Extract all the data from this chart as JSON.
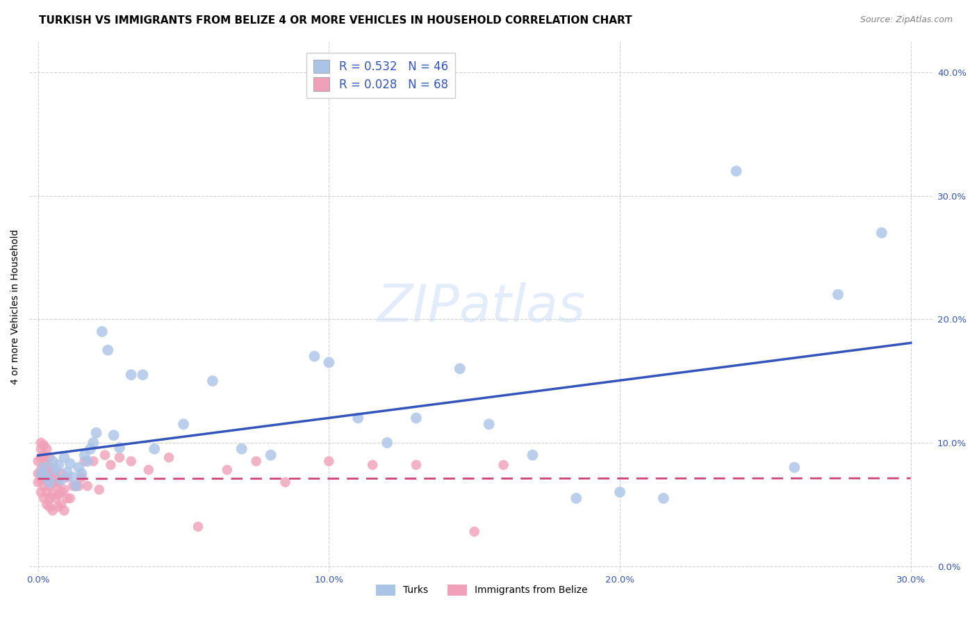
{
  "title": "TURKISH VS IMMIGRANTS FROM BELIZE 4 OR MORE VEHICLES IN HOUSEHOLD CORRELATION CHART",
  "source": "Source: ZipAtlas.com",
  "ylabel": "4 or more Vehicles in Household",
  "xlim": [
    -0.003,
    0.308
  ],
  "ylim": [
    -0.005,
    0.425
  ],
  "xtick_vals": [
    0.0,
    0.1,
    0.2,
    0.3
  ],
  "ytick_vals": [
    0.0,
    0.1,
    0.2,
    0.3,
    0.4
  ],
  "turks_color": "#aac4e8",
  "belize_color": "#f0a0b8",
  "turks_line_color": "#3355bb",
  "belize_line_color": "#cc4477",
  "watermark": "ZIPatlas",
  "legend_label1": "Turks",
  "legend_label2": "Immigrants from Belize",
  "title_fontsize": 11,
  "tick_fontsize": 9.5,
  "turks_x": [
    0.001,
    0.002,
    0.003,
    0.004,
    0.005,
    0.006,
    0.007,
    0.008,
    0.009,
    0.01,
    0.011,
    0.012,
    0.013,
    0.014,
    0.015,
    0.016,
    0.017,
    0.018,
    0.019,
    0.02,
    0.022,
    0.024,
    0.026,
    0.028,
    0.032,
    0.036,
    0.04,
    0.05,
    0.06,
    0.07,
    0.08,
    0.095,
    0.1,
    0.11,
    0.12,
    0.13,
    0.145,
    0.155,
    0.17,
    0.185,
    0.2,
    0.215,
    0.24,
    0.26,
    0.275,
    0.29
  ],
  "turks_y": [
    0.075,
    0.08,
    0.072,
    0.068,
    0.085,
    0.078,
    0.082,
    0.07,
    0.088,
    0.076,
    0.083,
    0.072,
    0.065,
    0.08,
    0.075,
    0.09,
    0.085,
    0.095,
    0.1,
    0.108,
    0.19,
    0.175,
    0.106,
    0.096,
    0.155,
    0.155,
    0.095,
    0.115,
    0.15,
    0.095,
    0.09,
    0.17,
    0.165,
    0.12,
    0.1,
    0.12,
    0.16,
    0.115,
    0.09,
    0.055,
    0.06,
    0.055,
    0.32,
    0.08,
    0.22,
    0.27
  ],
  "belize_x": [
    0.0,
    0.0,
    0.0,
    0.001,
    0.001,
    0.001,
    0.001,
    0.001,
    0.001,
    0.002,
    0.002,
    0.002,
    0.002,
    0.002,
    0.002,
    0.003,
    0.003,
    0.003,
    0.003,
    0.003,
    0.003,
    0.004,
    0.004,
    0.004,
    0.004,
    0.004,
    0.004,
    0.005,
    0.005,
    0.005,
    0.005,
    0.006,
    0.006,
    0.006,
    0.007,
    0.007,
    0.007,
    0.008,
    0.008,
    0.008,
    0.009,
    0.009,
    0.01,
    0.01,
    0.011,
    0.012,
    0.013,
    0.014,
    0.015,
    0.016,
    0.017,
    0.019,
    0.021,
    0.023,
    0.025,
    0.028,
    0.032,
    0.038,
    0.045,
    0.055,
    0.065,
    0.075,
    0.085,
    0.1,
    0.115,
    0.13,
    0.15,
    0.16
  ],
  "belize_y": [
    0.068,
    0.075,
    0.085,
    0.06,
    0.07,
    0.078,
    0.088,
    0.095,
    0.1,
    0.055,
    0.065,
    0.075,
    0.082,
    0.09,
    0.098,
    0.05,
    0.06,
    0.07,
    0.078,
    0.085,
    0.095,
    0.048,
    0.055,
    0.065,
    0.072,
    0.08,
    0.088,
    0.045,
    0.058,
    0.068,
    0.075,
    0.055,
    0.065,
    0.072,
    0.048,
    0.058,
    0.068,
    0.05,
    0.06,
    0.075,
    0.045,
    0.062,
    0.055,
    0.072,
    0.055,
    0.065,
    0.065,
    0.065,
    0.072,
    0.085,
    0.065,
    0.085,
    0.062,
    0.09,
    0.082,
    0.088,
    0.085,
    0.078,
    0.088,
    0.032,
    0.078,
    0.085,
    0.068,
    0.085,
    0.082,
    0.082,
    0.028,
    0.082
  ]
}
